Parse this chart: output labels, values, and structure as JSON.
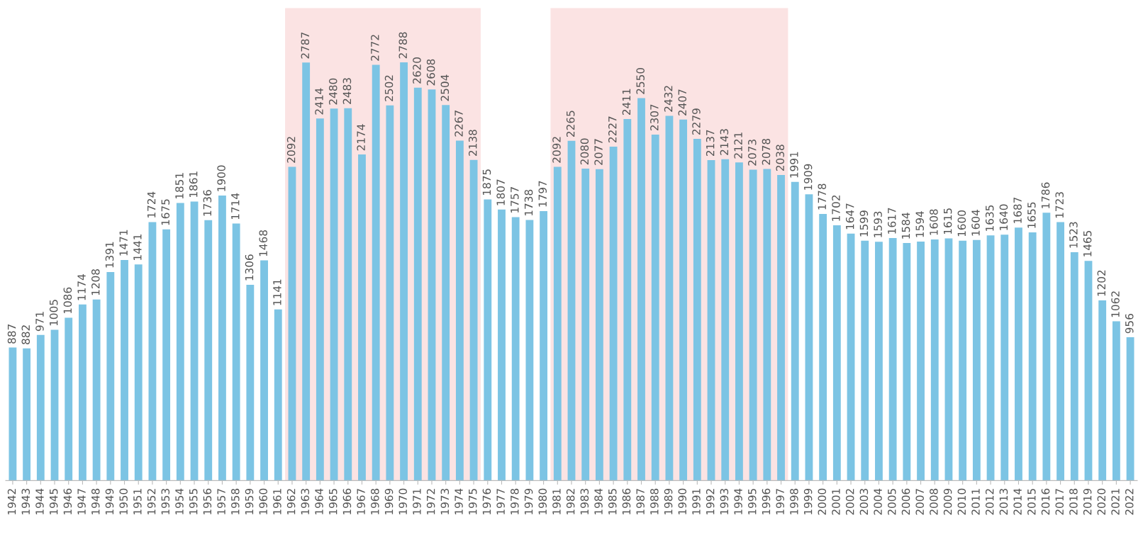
{
  "chart_data": {
    "type": "bar",
    "categories": [
      "1942",
      "1943",
      "1944",
      "1945",
      "1946",
      "1947",
      "1948",
      "1949",
      "1950",
      "1951",
      "1952",
      "1953",
      "1954",
      "1955",
      "1956",
      "1957",
      "1958",
      "1959",
      "1960",
      "1961",
      "1962",
      "1963",
      "1964",
      "1965",
      "1966",
      "1967",
      "1968",
      "1969",
      "1970",
      "1971",
      "1972",
      "1973",
      "1974",
      "1975",
      "1976",
      "1977",
      "1978",
      "1979",
      "1980",
      "1981",
      "1982",
      "1983",
      "1984",
      "1985",
      "1986",
      "1987",
      "1988",
      "1989",
      "1990",
      "1991",
      "1992",
      "1993",
      "1994",
      "1995",
      "1996",
      "1997",
      "1998",
      "1999",
      "2000",
      "2001",
      "2002",
      "2003",
      "2004",
      "2005",
      "2006",
      "2007",
      "2008",
      "2009",
      "2010",
      "2011",
      "2012",
      "2013",
      "2014",
      "2015",
      "2016",
      "2017",
      "2018",
      "2019",
      "2020",
      "2021",
      "2022"
    ],
    "values": [
      887,
      882,
      971,
      1005,
      1086,
      1174,
      1208,
      1391,
      1471,
      1441,
      1724,
      1675,
      1851,
      1861,
      1736,
      1900,
      1714,
      1306,
      1468,
      1141,
      2092,
      2787,
      2414,
      2480,
      2483,
      2174,
      2772,
      2502,
      2788,
      2620,
      2608,
      2504,
      2267,
      2138,
      1875,
      1807,
      1757,
      1738,
      1797,
      2092,
      2265,
      2080,
      2077,
      2227,
      2411,
      2550,
      2307,
      2432,
      2407,
      2279,
      2137,
      2143,
      2121,
      2073,
      2078,
      2038,
      1991,
      1909,
      1778,
      1702,
      1647,
      1599,
      1593,
      1617,
      1584,
      1594,
      1608,
      1615,
      1600,
      1604,
      1635,
      1640,
      1687,
      1655,
      1786,
      1723,
      1523,
      1465,
      1202,
      1062,
      956
    ],
    "color": "#7cc4e4",
    "data_labels": true,
    "bands": [
      {
        "axis": "x",
        "from": "1962",
        "to": "1975",
        "color": "#fbe3e3"
      },
      {
        "axis": "x",
        "from": "1981",
        "to": "1997",
        "color": "#fbe3e3"
      }
    ],
    "grid": false,
    "legend": false
  }
}
